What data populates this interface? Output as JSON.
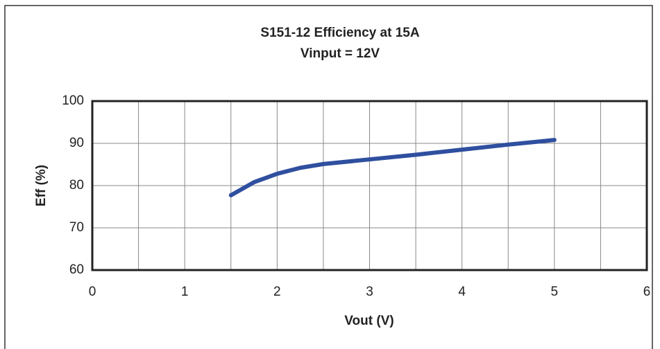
{
  "chart_data": {
    "type": "line",
    "title": "S151-12 Efficiency at 15A",
    "subtitle": "Vinput = 12V",
    "x_label": "Vout (V)",
    "y_label": "Eff (%)",
    "series": [
      {
        "name": "Efficiency",
        "color": "#2f4f9f",
        "x": [
          1.5,
          1.75,
          2,
          2.25,
          2.5,
          3,
          3.5,
          4,
          4.5,
          5
        ],
        "values": [
          77.7,
          80.8,
          82.8,
          84.2,
          85.1,
          86.2,
          87.3,
          88.5,
          89.7,
          90.8
        ]
      }
    ],
    "xlim": [
      0,
      6
    ],
    "xticks": [
      0,
      1,
      2,
      3,
      4,
      5,
      6
    ],
    "x_minor_ticks": [
      0.5,
      1.5,
      2.5,
      3.5,
      4.5,
      5.5
    ],
    "ylim": [
      60,
      100
    ],
    "yticks": [
      60,
      70,
      80,
      90,
      100
    ],
    "grid": true
  }
}
